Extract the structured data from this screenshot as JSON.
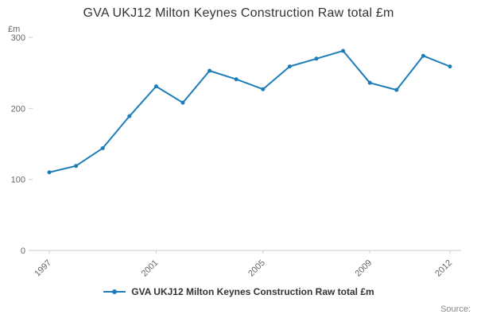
{
  "page": {
    "title": "GVA UKJ12 Milton Keynes Construction Raw total £m",
    "y_unit": "£m",
    "source_label": "Source:"
  },
  "legend": {
    "label": "GVA UKJ12 Milton Keynes Construction Raw total £m"
  },
  "chart_data": {
    "type": "line",
    "title": "GVA UKJ12 Milton Keynes Construction Raw total £m",
    "xlabel": "",
    "ylabel": "£m",
    "x": [
      1997,
      1998,
      1999,
      2000,
      2001,
      2002,
      2003,
      2004,
      2005,
      2006,
      2007,
      2008,
      2009,
      2010,
      2011,
      2012
    ],
    "series": [
      {
        "name": "GVA UKJ12 Milton Keynes Construction Raw total £m",
        "values": [
          110,
          119,
          144,
          189,
          231,
          208,
          253,
          241,
          227,
          259,
          270,
          281,
          236,
          226,
          274,
          259
        ]
      }
    ],
    "ylim": [
      0,
      300
    ],
    "yticks": [
      0,
      100,
      200,
      300
    ],
    "xticks_labeled": [
      1997,
      2001,
      2005,
      2009,
      2012
    ],
    "grid": false,
    "legend_position": "bottom",
    "colors": {
      "line": "#1d7db8",
      "axis": "#cccccc",
      "tick_text": "#666666"
    }
  }
}
